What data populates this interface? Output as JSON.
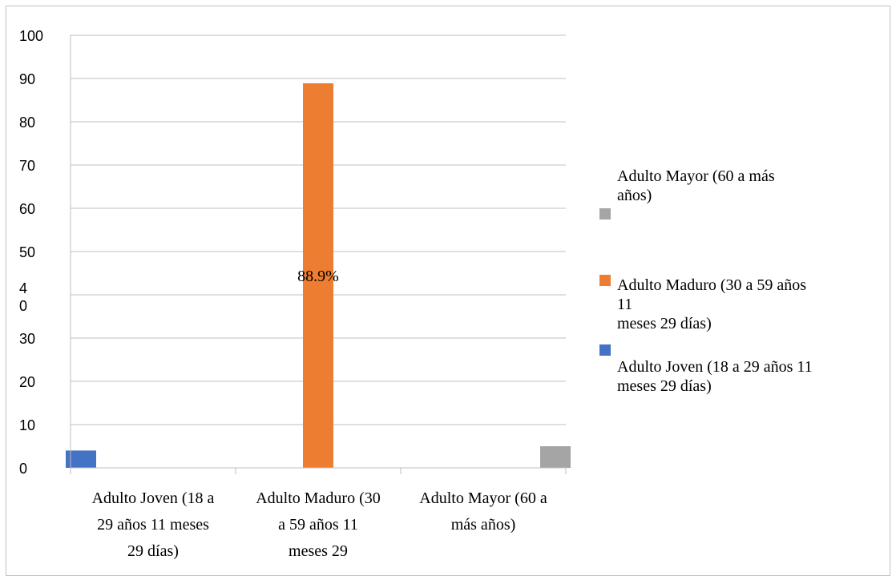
{
  "chart_data": {
    "type": "bar",
    "categories": [
      "Adulto Joven (18 a\n29 años 11 meses\n29 días)",
      "Adulto Maduro (30\na 59 años 11\nmeses 29",
      "Adulto Mayor (60 a\nmás años)"
    ],
    "series": [
      {
        "name": "Adulto Joven (18 a 29 años 11\nmeses 29 días)",
        "color": "#4472C4",
        "values": [
          4,
          0,
          0
        ]
      },
      {
        "name": "Adulto Maduro (30 a 59 años\n11\nmeses 29 días)",
        "color": "#ED7D31",
        "values": [
          0,
          88.9,
          0
        ]
      },
      {
        "name": "Adulto Mayor (60 a más\naños)",
        "color": "#A5A5A5",
        "values": [
          0,
          0,
          5
        ]
      }
    ],
    "data_labels": [
      {
        "series": 1,
        "category": 1,
        "text": "88.9%"
      }
    ],
    "y_ticks": [
      "0",
      "10",
      "20",
      "30",
      "4\n0",
      "50",
      "60",
      "70",
      "80",
      "90",
      "100"
    ],
    "ylim": [
      0,
      100
    ],
    "grid": true,
    "legend_position": "right",
    "legend_order": [
      2,
      1,
      0
    ]
  }
}
